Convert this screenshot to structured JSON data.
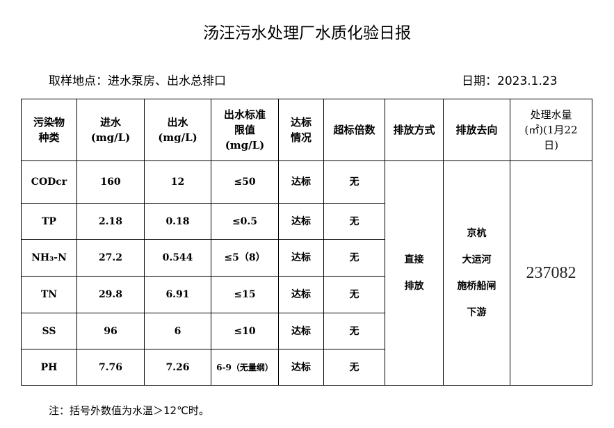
{
  "title": "汤汪污水处理厂水质化验日报",
  "location": "取样地点：进水泵房、出水总排口",
  "date": "日期：2023.1.23",
  "headers": [
    "污染物种类",
    "进水(mg/L)",
    "出水(mg/L)",
    "出水标准限值(mg/L)",
    "达标情况",
    "超标倍数",
    "排放方式",
    "排放去向",
    "处理水量(㎡)(1月22日)"
  ],
  "rows": [
    {
      "name": "CODcr",
      "in": "160",
      "out": "12",
      "limit": "≤50",
      "status": "达标",
      "exceed": "无"
    },
    {
      "name": "TP",
      "in": "2.18",
      "out": "0.18",
      "limit": "≤0.5",
      "status": "达标",
      "exceed": "无"
    },
    {
      "name": "NH₃-N",
      "in": "27.2",
      "out": "0.544",
      "limit": "≤5（8）",
      "status": "达标",
      "exceed": "无"
    },
    {
      "name": "TN",
      "in": "29.8",
      "out": "6.91",
      "limit": "≤15",
      "status": "达标",
      "exceed": "无"
    },
    {
      "name": "SS",
      "in": "96",
      "out": "6",
      "limit": "≤10",
      "status": "达标",
      "exceed": "无"
    },
    {
      "name": "PH",
      "in": "7.76",
      "out": "7.26",
      "limit": "6-9（无量纲）",
      "status": "达标",
      "exceed": "无"
    }
  ],
  "discharge_method": [
    "直接",
    "排放"
  ],
  "discharge_dest": [
    "京杭",
    "大运河",
    "施桥船闸",
    "下游"
  ],
  "volume": "237082",
  "note": "注：括号外数值为水温＞12℃时。"
}
